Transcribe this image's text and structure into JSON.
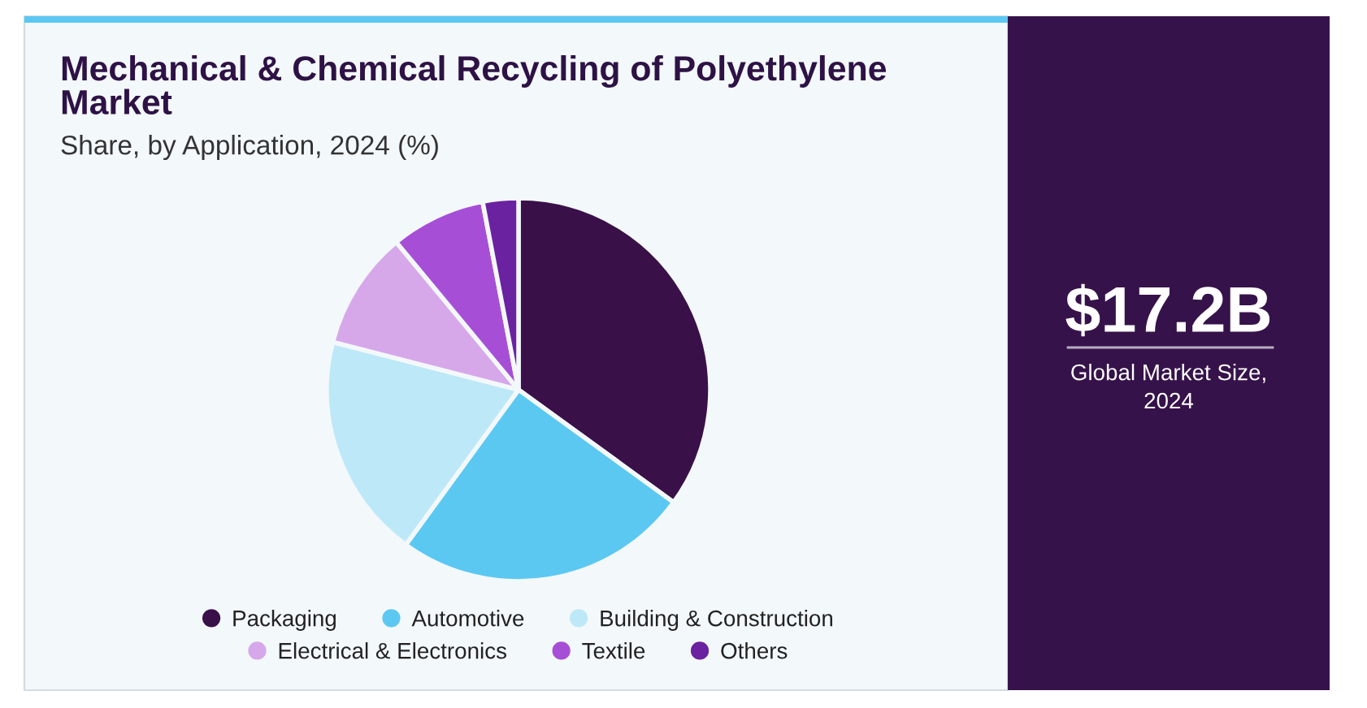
{
  "chart_data": {
    "type": "pie",
    "title": "Mechanical & Chemical Recycling of Polyethylene Market",
    "subtitle": "Share, by Application, 2024 (%)",
    "categories": [
      "Packaging",
      "Automotive",
      "Building & Construction",
      "Electrical & Electronics",
      "Textile",
      "Others"
    ],
    "values": [
      35,
      25,
      19,
      10,
      8,
      3
    ],
    "colors": [
      "#3a1049",
      "#5bc8f2",
      "#bde8f8",
      "#d6a8ea",
      "#a64fd6",
      "#6b22a0"
    ],
    "legend": "bottom",
    "annotations": [
      "$17.2B",
      "Global Market Size, 2024"
    ]
  }
}
